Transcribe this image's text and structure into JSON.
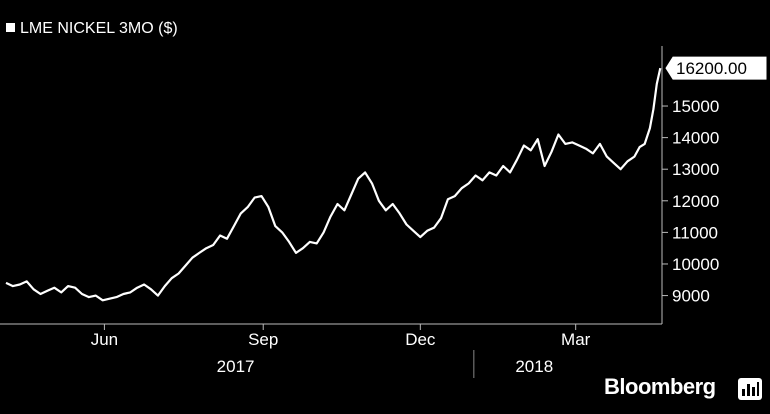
{
  "brand": "Bloomberg",
  "brand_icon": "terminal-bars-icon",
  "chart_data": {
    "type": "line",
    "title": "LME NICKEL 3MO ($)",
    "legend_swatch_color": "#ffffff",
    "line_color": "#ffffff",
    "background_color": "#000000",
    "last_value_label": "16200.00",
    "ylim": [
      8100,
      16900
    ],
    "y_ticks": [
      9000,
      10000,
      11000,
      12000,
      13000,
      14000,
      15000
    ],
    "xlim": [
      "2017-04-05",
      "2018-04-20"
    ],
    "x_tick_labels": [
      {
        "date": "2017-06-01",
        "label": "Jun"
      },
      {
        "date": "2017-09-01",
        "label": "Sep"
      },
      {
        "date": "2017-12-01",
        "label": "Dec"
      },
      {
        "date": "2018-03-01",
        "label": "Mar"
      }
    ],
    "x_year_labels": [
      {
        "date": "2017-08-16",
        "label": "2017"
      },
      {
        "date": "2018-02-05",
        "label": "2018"
      }
    ],
    "year_divider_date": "2018-01-01",
    "series": [
      {
        "points": [
          [
            "2017-04-05",
            9400
          ],
          [
            "2017-04-09",
            9300
          ],
          [
            "2017-04-13",
            9350
          ],
          [
            "2017-04-17",
            9450
          ],
          [
            "2017-04-21",
            9200
          ],
          [
            "2017-04-25",
            9050
          ],
          [
            "2017-04-29",
            9150
          ],
          [
            "2017-05-03",
            9250
          ],
          [
            "2017-05-07",
            9100
          ],
          [
            "2017-05-11",
            9300
          ],
          [
            "2017-05-15",
            9250
          ],
          [
            "2017-05-19",
            9050
          ],
          [
            "2017-05-23",
            8950
          ],
          [
            "2017-05-27",
            9000
          ],
          [
            "2017-05-31",
            8850
          ],
          [
            "2017-06-04",
            8900
          ],
          [
            "2017-06-08",
            8950
          ],
          [
            "2017-06-12",
            9050
          ],
          [
            "2017-06-16",
            9100
          ],
          [
            "2017-06-20",
            9250
          ],
          [
            "2017-06-24",
            9350
          ],
          [
            "2017-06-28",
            9200
          ],
          [
            "2017-07-02",
            9000
          ],
          [
            "2017-07-06",
            9300
          ],
          [
            "2017-07-10",
            9550
          ],
          [
            "2017-07-14",
            9700
          ],
          [
            "2017-07-18",
            9950
          ],
          [
            "2017-07-22",
            10200
          ],
          [
            "2017-07-26",
            10350
          ],
          [
            "2017-07-30",
            10500
          ],
          [
            "2017-08-03",
            10600
          ],
          [
            "2017-08-07",
            10900
          ],
          [
            "2017-08-11",
            10800
          ],
          [
            "2017-08-15",
            11200
          ],
          [
            "2017-08-19",
            11600
          ],
          [
            "2017-08-23",
            11800
          ],
          [
            "2017-08-27",
            12100
          ],
          [
            "2017-08-31",
            12150
          ],
          [
            "2017-09-04",
            11800
          ],
          [
            "2017-09-08",
            11200
          ],
          [
            "2017-09-12",
            11000
          ],
          [
            "2017-09-16",
            10700
          ],
          [
            "2017-09-20",
            10350
          ],
          [
            "2017-09-24",
            10500
          ],
          [
            "2017-09-28",
            10700
          ],
          [
            "2017-10-02",
            10650
          ],
          [
            "2017-10-06",
            11000
          ],
          [
            "2017-10-10",
            11500
          ],
          [
            "2017-10-14",
            11900
          ],
          [
            "2017-10-18",
            11700
          ],
          [
            "2017-10-22",
            12200
          ],
          [
            "2017-10-26",
            12700
          ],
          [
            "2017-10-30",
            12900
          ],
          [
            "2017-11-03",
            12550
          ],
          [
            "2017-11-07",
            12000
          ],
          [
            "2017-11-11",
            11700
          ],
          [
            "2017-11-15",
            11900
          ],
          [
            "2017-11-19",
            11600
          ],
          [
            "2017-11-23",
            11250
          ],
          [
            "2017-11-27",
            11050
          ],
          [
            "2017-12-01",
            10850
          ],
          [
            "2017-12-05",
            11050
          ],
          [
            "2017-12-09",
            11150
          ],
          [
            "2017-12-13",
            11450
          ],
          [
            "2017-12-17",
            12050
          ],
          [
            "2017-12-21",
            12150
          ],
          [
            "2017-12-25",
            12400
          ],
          [
            "2017-12-29",
            12550
          ],
          [
            "2018-01-02",
            12800
          ],
          [
            "2018-01-06",
            12650
          ],
          [
            "2018-01-10",
            12900
          ],
          [
            "2018-01-14",
            12800
          ],
          [
            "2018-01-18",
            13100
          ],
          [
            "2018-01-22",
            12900
          ],
          [
            "2018-01-26",
            13300
          ],
          [
            "2018-01-30",
            13750
          ],
          [
            "2018-02-03",
            13600
          ],
          [
            "2018-02-07",
            13950
          ],
          [
            "2018-02-11",
            13100
          ],
          [
            "2018-02-15",
            13550
          ],
          [
            "2018-02-19",
            14100
          ],
          [
            "2018-02-23",
            13800
          ],
          [
            "2018-02-27",
            13850
          ],
          [
            "2018-03-03",
            13750
          ],
          [
            "2018-03-07",
            13650
          ],
          [
            "2018-03-11",
            13500
          ],
          [
            "2018-03-15",
            13800
          ],
          [
            "2018-03-19",
            13400
          ],
          [
            "2018-03-23",
            13200
          ],
          [
            "2018-03-27",
            13000
          ],
          [
            "2018-03-31",
            13250
          ],
          [
            "2018-04-04",
            13400
          ],
          [
            "2018-04-07",
            13700
          ],
          [
            "2018-04-10",
            13800
          ],
          [
            "2018-04-13",
            14300
          ],
          [
            "2018-04-15",
            14900
          ],
          [
            "2018-04-17",
            15700
          ],
          [
            "2018-04-19",
            16200
          ]
        ]
      }
    ]
  }
}
